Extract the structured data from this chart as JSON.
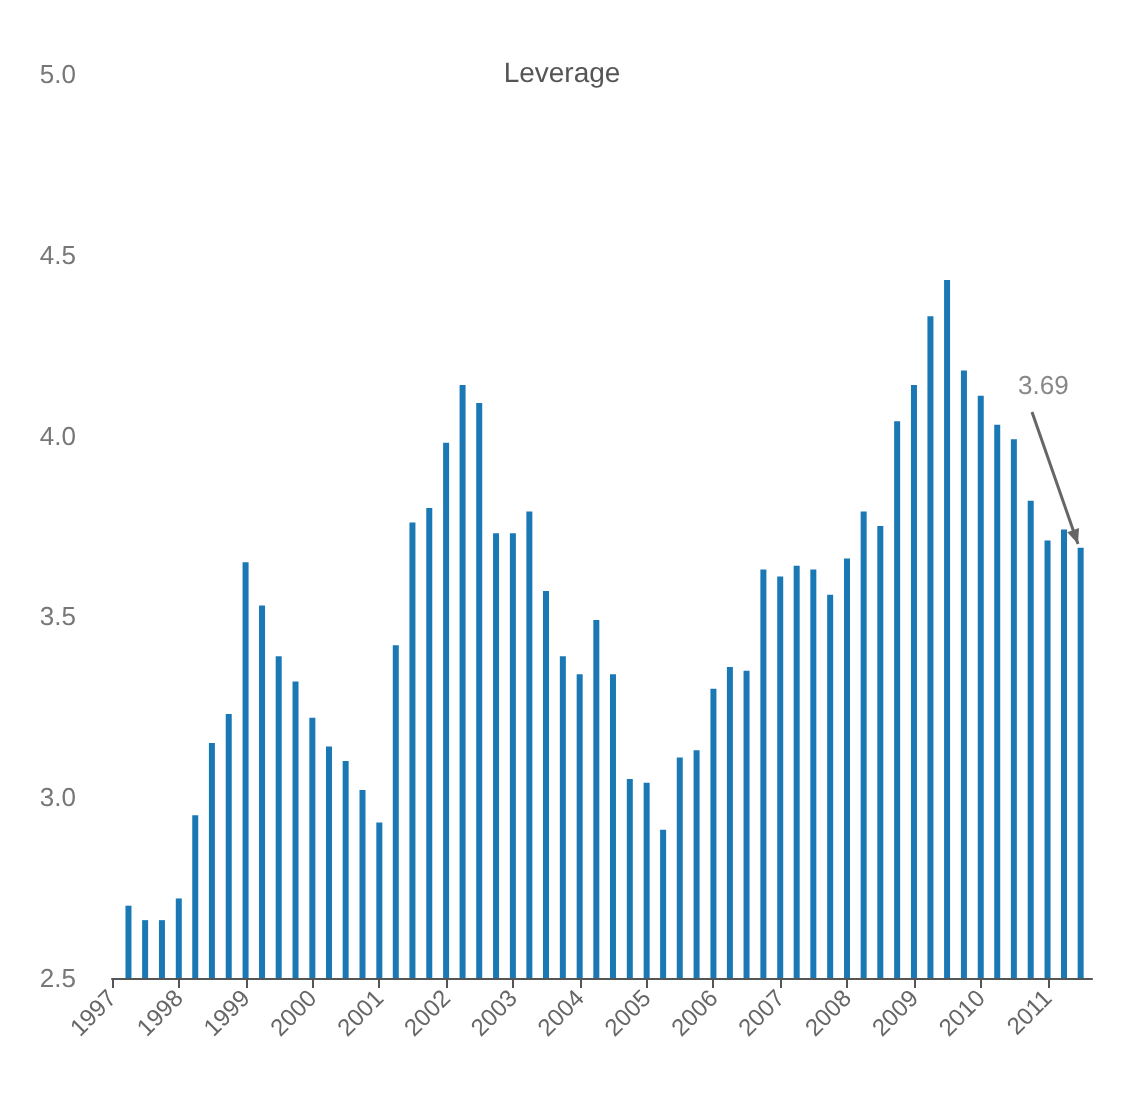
{
  "chart_data": {
    "type": "bar",
    "title": "Leverage",
    "x": [
      "1997-04",
      "1997-07",
      "1997-10",
      "1998-01",
      "1998-04",
      "1998-07",
      "1998-10",
      "1999-01",
      "1999-04",
      "1999-07",
      "1999-10",
      "2000-01",
      "2000-04",
      "2000-07",
      "2000-10",
      "2001-01",
      "2001-04",
      "2001-07",
      "2001-10",
      "2002-01",
      "2002-04",
      "2002-07",
      "2002-10",
      "2003-01",
      "2003-04",
      "2003-07",
      "2003-10",
      "2004-01",
      "2004-04",
      "2004-07",
      "2004-10",
      "2005-01",
      "2005-04",
      "2005-07",
      "2005-10",
      "2006-01",
      "2006-04",
      "2006-07",
      "2006-10",
      "2007-01",
      "2007-04",
      "2007-07",
      "2007-10",
      "2008-01",
      "2008-04",
      "2008-07",
      "2008-10",
      "2009-01",
      "2009-04",
      "2009-07",
      "2009-10",
      "2010-01",
      "2010-04",
      "2010-07",
      "2010-10",
      "2011-01",
      "2011-04",
      "2011-07"
    ],
    "values": [
      2.7,
      2.66,
      2.66,
      2.72,
      2.95,
      3.15,
      3.23,
      3.65,
      3.53,
      3.39,
      3.32,
      3.22,
      3.14,
      3.1,
      3.02,
      2.93,
      3.42,
      3.76,
      3.8,
      3.98,
      4.14,
      4.09,
      3.73,
      3.73,
      3.79,
      3.57,
      3.39,
      3.34,
      3.49,
      3.34,
      3.05,
      3.04,
      2.91,
      3.11,
      3.13,
      3.3,
      3.36,
      3.35,
      3.63,
      3.61,
      3.64,
      3.63,
      3.56,
      3.66,
      3.79,
      3.75,
      4.04,
      4.14,
      4.33,
      4.43,
      4.18,
      4.11,
      4.03,
      3.99,
      3.82,
      3.71,
      3.74,
      3.69
    ],
    "color": "#1a78b4",
    "xlim": [
      "1997-01",
      "2011-09"
    ],
    "xticks": [
      "1997",
      "1998",
      "1999",
      "2000",
      "2001",
      "2002",
      "2003",
      "2004",
      "2005",
      "2006",
      "2007",
      "2008",
      "2009",
      "2010",
      "2011"
    ],
    "ylim": [
      2.5,
      5.0
    ],
    "yticks": [
      {
        "value": 2.5,
        "label": "2.5"
      },
      {
        "value": 3,
        "label": "3.0"
      },
      {
        "value": 3.5,
        "label": "3.5"
      },
      {
        "value": 4,
        "label": "4.0"
      },
      {
        "value": 4.5,
        "label": "4.5"
      },
      {
        "value": 5,
        "label": "5.0"
      }
    ],
    "annotations": [
      {
        "text": "3.69",
        "x": "2011-07",
        "y": 3.69
      }
    ]
  }
}
